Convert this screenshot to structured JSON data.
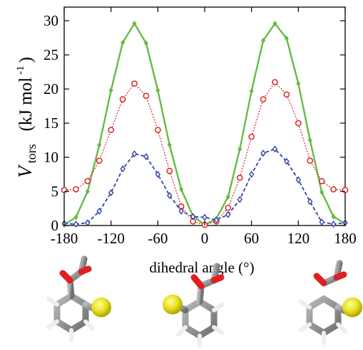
{
  "chart_data": {
    "type": "line",
    "title": "",
    "xlabel": "dihedral angle (°)",
    "ylabel": {
      "symbol": "V",
      "subscript": "tors",
      "unit_open": "(kJ mol",
      "unit_exp": "-1",
      "unit_close": ")"
    },
    "xlim": [
      -180,
      180
    ],
    "ylim": [
      0,
      32
    ],
    "x_ticks": [
      -180,
      -120,
      -60,
      0,
      60,
      120,
      180
    ],
    "x_tick_labels": [
      "-180",
      "-120",
      "-60",
      "0",
      "60",
      "120",
      "180"
    ],
    "y_ticks": [
      0,
      5,
      10,
      15,
      20,
      25,
      30
    ],
    "y_tick_labels": [
      "0",
      "5",
      "10",
      "15",
      "20",
      "25",
      "30"
    ],
    "grid": false,
    "legend": "none",
    "series": [
      {
        "color": "#66bb44",
        "line_style": "solid",
        "marker": "filled-diamond",
        "x": [
          -180,
          -165,
          -150,
          -135,
          -120,
          -105,
          -90,
          -75,
          -60,
          -45,
          -30,
          -15,
          0,
          15,
          30,
          45,
          60,
          75,
          90,
          105,
          120,
          135,
          150,
          165,
          180
        ],
        "y": [
          0.1,
          1.2,
          5.0,
          11.8,
          19.8,
          26.8,
          29.6,
          26.7,
          19.8,
          11.8,
          5.3,
          1.4,
          0.1,
          1.0,
          4.2,
          11.2,
          19.7,
          27.1,
          29.6,
          27.4,
          20.8,
          12.5,
          4.9,
          1.3,
          0.3
        ]
      },
      {
        "color": "#dd2222",
        "line_style": "dotted",
        "marker": "open-circle",
        "x": [
          -180,
          -165,
          -150,
          -135,
          -120,
          -105,
          -90,
          -75,
          -60,
          -45,
          -30,
          -15,
          0,
          15,
          30,
          45,
          60,
          75,
          90,
          105,
          120,
          135,
          150,
          165,
          180
        ],
        "y": [
          5.2,
          5.3,
          6.5,
          9.5,
          14.0,
          18.5,
          20.8,
          19.0,
          14.0,
          8.0,
          2.8,
          0.6,
          0.1,
          0.6,
          2.6,
          7.0,
          13.0,
          18.5,
          21.0,
          19.2,
          15.0,
          9.5,
          6.5,
          5.3,
          5.2
        ]
      },
      {
        "color": "#3344aa",
        "line_style": "dashed",
        "marker": "open-diamond",
        "x": [
          -180,
          -165,
          -150,
          -135,
          -120,
          -105,
          -90,
          -75,
          -60,
          -45,
          -30,
          -15,
          0,
          15,
          30,
          45,
          60,
          75,
          90,
          105,
          120,
          135,
          150,
          165,
          180
        ],
        "y": [
          0.3,
          0.2,
          0.4,
          2.1,
          4.8,
          8.3,
          10.5,
          10.1,
          7.5,
          4.4,
          2.1,
          1.3,
          1.2,
          0.8,
          1.6,
          3.8,
          7.5,
          10.6,
          11.2,
          9.4,
          6.7,
          3.5,
          0.5,
          0.2,
          0.4
        ]
      }
    ]
  },
  "molecule_images": [
    {
      "position": "left",
      "description_icon": "methyl-benzoate-thioether-left-icon"
    },
    {
      "position": "center",
      "description_icon": "methyl-benzoate-thioether-center-icon"
    },
    {
      "position": "right",
      "description_icon": "methyl-benzoate-thioether-right-icon"
    }
  ],
  "colors": {
    "carbon": "#8a8a8a",
    "hydrogen": "#f0f0f0",
    "oxygen": "#e02020",
    "sulfur": "#e8e020"
  }
}
